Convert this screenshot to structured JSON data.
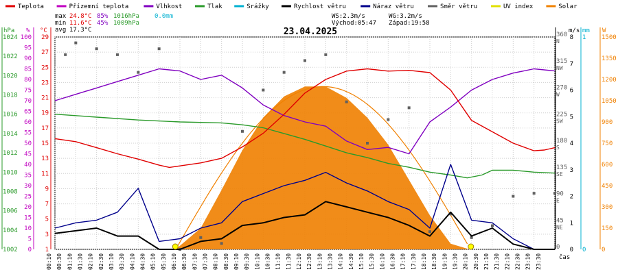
{
  "legend": [
    {
      "label": "Teplota",
      "color": "#e00000"
    },
    {
      "label": "Přízemní teplota",
      "color": "#c000c0"
    },
    {
      "label": "Vlhkost",
      "color": "#8000c0"
    },
    {
      "label": "Tlak",
      "color": "#2a9a2a"
    },
    {
      "label": "Srážky",
      "color": "#00b0d0"
    },
    {
      "label": "Rychlost větru",
      "color": "#000000"
    },
    {
      "label": "Náraz větru",
      "color": "#00008b"
    },
    {
      "label": "Směr větru",
      "color": "#606060"
    },
    {
      "label": "UV index",
      "color": "#e0e000"
    },
    {
      "label": "Solar",
      "color": "#f08000"
    }
  ],
  "stats": {
    "max_label": "max",
    "max_temp": "24.8°C",
    "max_hum": "85%",
    "max_press": "1016hPa",
    "rain": "0.0mm",
    "min_label": "min",
    "min_temp": "11.6°C",
    "min_hum": "45%",
    "min_press": "1009hPa",
    "avg_label": "avg",
    "avg_temp": "17.3°C"
  },
  "wind_info": {
    "ws": "WS:2.3m/s",
    "wg": "WG:3.2m/s",
    "sunrise": "Východ:05:47",
    "sunset": "Západ:19:58"
  },
  "axis_units": {
    "hpa": "hPa",
    "percent": "%",
    "celsius": "°C",
    "ms": "m/s",
    "mm": "mm",
    "watt": "W",
    "time": "čas"
  },
  "chart_data": {
    "type": "line",
    "title": "23.04.2025",
    "x_labels": [
      "00:10",
      "00:30",
      "01:10",
      "01:30",
      "02:10",
      "02:30",
      "03:10",
      "03:30",
      "04:10",
      "04:30",
      "05:10",
      "05:30",
      "06:10",
      "06:30",
      "07:10",
      "07:30",
      "08:10",
      "08:30",
      "09:10",
      "09:30",
      "10:10",
      "10:30",
      "11:10",
      "11:30",
      "12:10",
      "12:30",
      "13:10",
      "13:30",
      "14:10",
      "14:30",
      "15:10",
      "15:30",
      "16:10",
      "16:30",
      "17:10",
      "17:30",
      "18:10",
      "18:30",
      "19:10",
      "19:30",
      "20:10",
      "20:30",
      "21:10",
      "21:30",
      "22:10",
      "22:30",
      "23:10",
      "23:30"
    ],
    "x_hours": [
      0,
      24
    ],
    "y_axes": {
      "hpa": {
        "min": 1002,
        "max": 1024,
        "ticks": [
          1002,
          1004,
          1006,
          1008,
          1010,
          1012,
          1014,
          1016,
          1018,
          1020,
          1022,
          1024
        ]
      },
      "percent": {
        "min": 0,
        "max": 100,
        "ticks": [
          0,
          5,
          10,
          15,
          20,
          25,
          30,
          35,
          40,
          45,
          50,
          55,
          60,
          65,
          70,
          75,
          80,
          85,
          90,
          95,
          100
        ]
      },
      "celsius": {
        "min": 1,
        "max": 29,
        "ticks": [
          1,
          3,
          5,
          7,
          9,
          11,
          13,
          15,
          17,
          19,
          21,
          23,
          25,
          27,
          29
        ]
      },
      "direction": {
        "ticks": [
          {
            "v": "0",
            "d": ""
          },
          {
            "v": "45",
            "d": "NE"
          },
          {
            "v": "90",
            "d": "E"
          },
          {
            "v": "135",
            "d": "SE"
          },
          {
            "v": "180",
            "d": "S"
          },
          {
            "v": "225",
            "d": "SW"
          },
          {
            "v": "270",
            "d": "W"
          },
          {
            "v": "315",
            "d": "NW"
          },
          {
            "v": "360",
            "d": "N"
          }
        ]
      },
      "ms": {
        "min": 0,
        "max": 8,
        "ticks": [
          0,
          1,
          2,
          3,
          4,
          5,
          6,
          7,
          8
        ]
      },
      "mm": {
        "ticks": [
          "0",
          "1"
        ]
      },
      "watt": {
        "min": 0,
        "max": 1500,
        "ticks": [
          0,
          150,
          300,
          450,
          600,
          750,
          900,
          1050,
          1200,
          1350,
          1500
        ]
      }
    },
    "series": [
      {
        "name": "Teplota",
        "axis": "celsius",
        "color": "#e00000",
        "points": [
          [
            0,
            15.6
          ],
          [
            1,
            15.2
          ],
          [
            2,
            14.4
          ],
          [
            3,
            13.6
          ],
          [
            4,
            12.9
          ],
          [
            5,
            12.1
          ],
          [
            5.5,
            11.8
          ],
          [
            6,
            12.0
          ],
          [
            7,
            12.4
          ],
          [
            8,
            13.0
          ],
          [
            9,
            14.5
          ],
          [
            10,
            16.3
          ],
          [
            11,
            18.8
          ],
          [
            12,
            21.6
          ],
          [
            13,
            23.4
          ],
          [
            14,
            24.5
          ],
          [
            15,
            24.8
          ],
          [
            16,
            24.5
          ],
          [
            17,
            24.6
          ],
          [
            18,
            24.3
          ],
          [
            19,
            22.0
          ],
          [
            20,
            18.0
          ],
          [
            21,
            16.5
          ],
          [
            22,
            15.0
          ],
          [
            23,
            14.0
          ],
          [
            23.5,
            14.1
          ],
          [
            24,
            14.4
          ]
        ]
      },
      {
        "name": "Vlhkost",
        "axis": "percent",
        "color": "#8000c0",
        "points": [
          [
            0,
            70
          ],
          [
            1,
            73
          ],
          [
            2,
            76
          ],
          [
            3,
            79
          ],
          [
            4,
            82
          ],
          [
            5,
            85
          ],
          [
            6,
            84
          ],
          [
            7,
            80
          ],
          [
            8,
            82
          ],
          [
            9,
            76
          ],
          [
            10,
            68
          ],
          [
            11,
            63
          ],
          [
            12,
            60
          ],
          [
            13,
            58
          ],
          [
            14,
            51
          ],
          [
            15,
            47
          ],
          [
            16,
            48
          ],
          [
            17,
            45
          ],
          [
            18,
            60
          ],
          [
            19,
            67
          ],
          [
            20,
            75
          ],
          [
            21,
            80
          ],
          [
            22,
            83
          ],
          [
            23,
            85
          ],
          [
            24,
            84
          ]
        ]
      },
      {
        "name": "Tlak",
        "axis": "hpa",
        "color": "#2a9a2a",
        "points": [
          [
            0,
            1016
          ],
          [
            2,
            1015.7
          ],
          [
            4,
            1015.4
          ],
          [
            6,
            1015.2
          ],
          [
            8,
            1015.1
          ],
          [
            9,
            1014.9
          ],
          [
            10,
            1014.6
          ],
          [
            11,
            1014.0
          ],
          [
            12,
            1013.4
          ],
          [
            13,
            1012.7
          ],
          [
            14,
            1012.0
          ],
          [
            15,
            1011.5
          ],
          [
            16,
            1010.9
          ],
          [
            17,
            1010.5
          ],
          [
            18,
            1010.0
          ],
          [
            19,
            1009.7
          ],
          [
            19.8,
            1009.4
          ],
          [
            20.5,
            1009.7
          ],
          [
            21,
            1010.2
          ],
          [
            22,
            1010.2
          ],
          [
            23,
            1010.0
          ],
          [
            24,
            1009.9
          ]
        ]
      },
      {
        "name": "Solar",
        "axis": "watt",
        "color": "#f08000",
        "points": [
          [
            5.8,
            0
          ],
          [
            7,
            150
          ],
          [
            8,
            420
          ],
          [
            9,
            700
          ],
          [
            10,
            930
          ],
          [
            11,
            1080
          ],
          [
            12,
            1150
          ],
          [
            13,
            1150
          ],
          [
            14,
            1070
          ],
          [
            15,
            930
          ],
          [
            16,
            740
          ],
          [
            17,
            490
          ],
          [
            18,
            240
          ],
          [
            19,
            40
          ],
          [
            19.9,
            0
          ]
        ]
      },
      {
        "name": "Rychlost větru",
        "axis": "ms",
        "color": "#000000",
        "points": [
          [
            0,
            0.6
          ],
          [
            1,
            0.7
          ],
          [
            2,
            0.8
          ],
          [
            3,
            0.5
          ],
          [
            4,
            0.5
          ],
          [
            5,
            0
          ],
          [
            6,
            0
          ],
          [
            7,
            0.3
          ],
          [
            8,
            0.4
          ],
          [
            9,
            0.9
          ],
          [
            10,
            1.0
          ],
          [
            11,
            1.2
          ],
          [
            12,
            1.3
          ],
          [
            13,
            1.8
          ],
          [
            14,
            1.6
          ],
          [
            15,
            1.4
          ],
          [
            16,
            1.2
          ],
          [
            17,
            0.9
          ],
          [
            18,
            0.5
          ],
          [
            19,
            1.4
          ],
          [
            20,
            0.5
          ],
          [
            21,
            0.8
          ],
          [
            22,
            0.2
          ],
          [
            23,
            0
          ],
          [
            24,
            0
          ]
        ]
      },
      {
        "name": "Náraz větru",
        "axis": "ms",
        "color": "#00008b",
        "points": [
          [
            0,
            0.8
          ],
          [
            1,
            1.0
          ],
          [
            2,
            1.1
          ],
          [
            3,
            1.4
          ],
          [
            4,
            2.3
          ],
          [
            5,
            0.3
          ],
          [
            6,
            0.4
          ],
          [
            7,
            0.8
          ],
          [
            8,
            1.0
          ],
          [
            9,
            1.8
          ],
          [
            10,
            2.1
          ],
          [
            11,
            2.4
          ],
          [
            12,
            2.6
          ],
          [
            13,
            2.9
          ],
          [
            14,
            2.5
          ],
          [
            15,
            2.2
          ],
          [
            16,
            1.8
          ],
          [
            17,
            1.5
          ],
          [
            18,
            0.8
          ],
          [
            19,
            3.2
          ],
          [
            20,
            1.1
          ],
          [
            21,
            1.0
          ],
          [
            22,
            0.4
          ],
          [
            23,
            0
          ],
          [
            24,
            0
          ]
        ]
      },
      {
        "name": "Směr větru",
        "axis": "direction",
        "color": "#606060",
        "points": [
          [
            0.5,
            330
          ],
          [
            1,
            350
          ],
          [
            2,
            340
          ],
          [
            3,
            330
          ],
          [
            4,
            300
          ],
          [
            5,
            340
          ],
          [
            6,
            0
          ],
          [
            7,
            20
          ],
          [
            8,
            10
          ],
          [
            9,
            200
          ],
          [
            10,
            270
          ],
          [
            11,
            300
          ],
          [
            12,
            320
          ],
          [
            13,
            330
          ],
          [
            14,
            250
          ],
          [
            15,
            180
          ],
          [
            16,
            220
          ],
          [
            17,
            240
          ],
          [
            18,
            30
          ],
          [
            19,
            60
          ],
          [
            20,
            20
          ],
          [
            21,
            40
          ],
          [
            22,
            90
          ],
          [
            23,
            95
          ],
          [
            24,
            95
          ]
        ]
      }
    ],
    "sun_markers": [
      {
        "name": "sunrise",
        "hour": 5.78
      },
      {
        "name": "sunset",
        "hour": 19.97
      }
    ]
  }
}
